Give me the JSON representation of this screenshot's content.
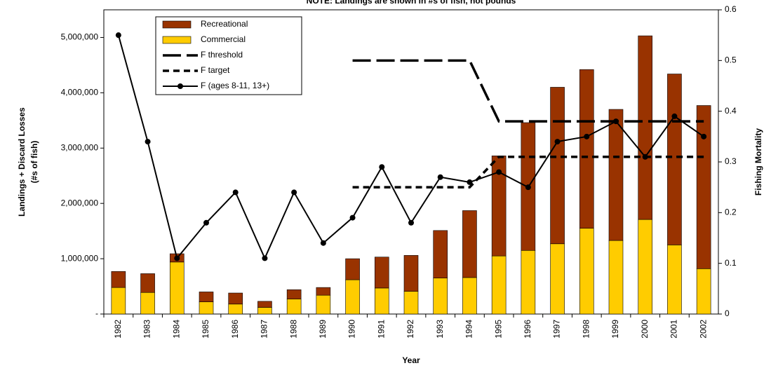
{
  "chart_data": {
    "type": "bar",
    "title": "NOTE: Landings are shown in #s of fish, not pounds",
    "xlabel": "Year",
    "ylabel": [
      "Landings + Discard Losses",
      "(#s of fish)"
    ],
    "y2label": "Fishing Mortality",
    "categories": [
      "1982",
      "1983",
      "1984",
      "1985",
      "1986",
      "1987",
      "1988",
      "1989",
      "1990",
      "1991",
      "1992",
      "1993",
      "1994",
      "1995",
      "1996",
      "1997",
      "1998",
      "1999",
      "2000",
      "2001",
      "2002"
    ],
    "ylim": [
      0,
      5500000
    ],
    "yticks": [
      {
        "value": 0,
        "label": "-"
      },
      {
        "value": 1000000,
        "label": "1,000,000"
      },
      {
        "value": 2000000,
        "label": "2,000,000"
      },
      {
        "value": 3000000,
        "label": "3,000,000"
      },
      {
        "value": 4000000,
        "label": "4,000,000"
      },
      {
        "value": 5000000,
        "label": "5,000,000"
      }
    ],
    "y2lim": [
      0,
      0.6
    ],
    "y2ticks": [
      0,
      0.1,
      0.2,
      0.3,
      0.4,
      0.5,
      0.6
    ],
    "stacked": true,
    "series": [
      {
        "name": "Recreational",
        "type": "bar",
        "color": "#993300",
        "values": [
          290000,
          340000,
          150000,
          180000,
          200000,
          110000,
          170000,
          140000,
          380000,
          560000,
          650000,
          860000,
          1210000,
          1810000,
          2310000,
          2830000,
          2870000,
          2370000,
          3320000,
          3090000,
          2950000
        ]
      },
      {
        "name": "Commercial",
        "type": "bar",
        "color": "#ffcc00",
        "values": [
          480000,
          390000,
          940000,
          220000,
          180000,
          120000,
          270000,
          340000,
          620000,
          470000,
          410000,
          650000,
          660000,
          1050000,
          1150000,
          1270000,
          1550000,
          1330000,
          1710000,
          1250000,
          820000
        ]
      },
      {
        "name": "F threshold",
        "type": "line",
        "axis": "y2",
        "color": "#000000",
        "dash": "long",
        "values": [
          null,
          null,
          null,
          null,
          null,
          null,
          null,
          null,
          0.5,
          0.5,
          0.5,
          0.5,
          0.5,
          0.38,
          0.38,
          0.38,
          0.38,
          0.38,
          0.38,
          0.38,
          0.38
        ]
      },
      {
        "name": "F target",
        "type": "line",
        "axis": "y2",
        "color": "#000000",
        "dash": "short",
        "values": [
          null,
          null,
          null,
          null,
          null,
          null,
          null,
          null,
          0.25,
          0.25,
          0.25,
          0.25,
          0.25,
          0.31,
          0.31,
          0.31,
          0.31,
          0.31,
          0.31,
          0.31,
          0.31
        ]
      },
      {
        "name": "F (ages 8-11, 13+)",
        "type": "line",
        "axis": "y2",
        "color": "#000000",
        "markers": true,
        "values": [
          0.55,
          0.34,
          0.11,
          0.18,
          0.24,
          0.11,
          0.24,
          0.14,
          0.19,
          0.29,
          0.18,
          0.27,
          0.26,
          0.28,
          0.25,
          0.34,
          0.35,
          0.38,
          0.31,
          0.39,
          0.35
        ]
      }
    ]
  }
}
